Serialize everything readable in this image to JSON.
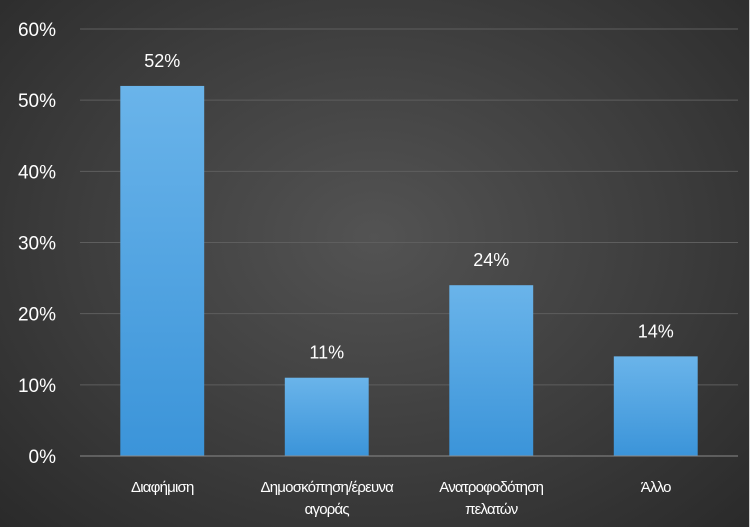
{
  "chart_data": {
    "type": "bar",
    "categories": [
      [
        "Διαφήμιση"
      ],
      [
        "Δημοσκόπηση/έρευνα",
        "αγοράς"
      ],
      [
        "Ανατροφοδότηση",
        "πελατών"
      ],
      [
        "Άλλο"
      ]
    ],
    "values": [
      52,
      11,
      24,
      14
    ],
    "data_labels": [
      "52%",
      "11%",
      "24%",
      "14%"
    ],
    "ylim": [
      0,
      60
    ],
    "yticks": [
      0,
      10,
      20,
      30,
      40,
      50,
      60
    ],
    "ytick_labels": [
      "0%",
      "10%",
      "20%",
      "30%",
      "40%",
      "50%",
      "60%"
    ],
    "title": "",
    "xlabel": "",
    "ylabel": "",
    "grid": true,
    "legend": "none",
    "colors": {
      "bar_top": "#6ab4ea",
      "bar_bottom": "#3b94d9",
      "grid": "#5e5e5e",
      "axis": "#8a8a8a",
      "text": "#ffffff"
    }
  }
}
